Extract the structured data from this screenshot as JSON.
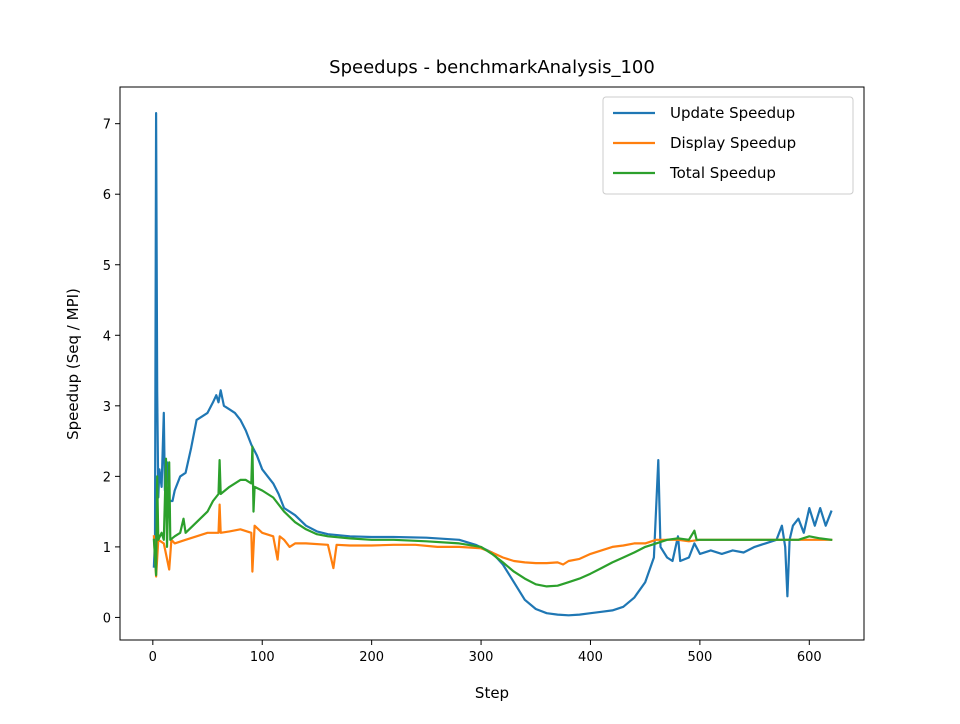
{
  "chart_data": {
    "type": "line",
    "title": "Speedups - benchmarkAnalysis_100",
    "xlabel": "Step",
    "ylabel": "Speedup (Seq / MPI)",
    "xlim": [
      -30,
      650
    ],
    "ylim": [
      -0.32,
      7.52
    ],
    "xticks": [
      0,
      100,
      200,
      300,
      400,
      500,
      600
    ],
    "yticks": [
      0,
      1,
      2,
      3,
      4,
      5,
      6,
      7
    ],
    "grid": false,
    "legend_position": "top-right",
    "series": [
      {
        "name": "Update Speedup",
        "color": "#1f77b4",
        "points": [
          [
            1,
            0.72
          ],
          [
            2,
            1.1
          ],
          [
            3,
            7.15
          ],
          [
            4,
            3.2
          ],
          [
            5,
            1.7
          ],
          [
            6,
            2.1
          ],
          [
            8,
            1.85
          ],
          [
            10,
            2.9
          ],
          [
            11,
            1.8
          ],
          [
            13,
            2.2
          ],
          [
            15,
            1.65
          ],
          [
            18,
            1.65
          ],
          [
            20,
            1.8
          ],
          [
            25,
            2.0
          ],
          [
            30,
            2.05
          ],
          [
            35,
            2.4
          ],
          [
            40,
            2.8
          ],
          [
            45,
            2.85
          ],
          [
            50,
            2.9
          ],
          [
            55,
            3.05
          ],
          [
            58,
            3.15
          ],
          [
            60,
            3.05
          ],
          [
            62,
            3.22
          ],
          [
            65,
            3.0
          ],
          [
            70,
            2.95
          ],
          [
            75,
            2.9
          ],
          [
            80,
            2.8
          ],
          [
            85,
            2.65
          ],
          [
            90,
            2.45
          ],
          [
            95,
            2.3
          ],
          [
            100,
            2.1
          ],
          [
            105,
            2.0
          ],
          [
            110,
            1.9
          ],
          [
            115,
            1.75
          ],
          [
            120,
            1.55
          ],
          [
            125,
            1.5
          ],
          [
            130,
            1.45
          ],
          [
            140,
            1.3
          ],
          [
            150,
            1.22
          ],
          [
            160,
            1.18
          ],
          [
            180,
            1.15
          ],
          [
            200,
            1.14
          ],
          [
            220,
            1.14
          ],
          [
            250,
            1.13
          ],
          [
            280,
            1.1
          ],
          [
            295,
            1.03
          ],
          [
            310,
            0.92
          ],
          [
            320,
            0.75
          ],
          [
            330,
            0.5
          ],
          [
            340,
            0.25
          ],
          [
            350,
            0.12
          ],
          [
            360,
            0.06
          ],
          [
            370,
            0.04
          ],
          [
            380,
            0.03
          ],
          [
            390,
            0.04
          ],
          [
            400,
            0.06
          ],
          [
            410,
            0.08
          ],
          [
            420,
            0.1
          ],
          [
            430,
            0.15
          ],
          [
            440,
            0.28
          ],
          [
            450,
            0.5
          ],
          [
            458,
            0.85
          ],
          [
            462,
            2.23
          ],
          [
            464,
            1.0
          ],
          [
            470,
            0.85
          ],
          [
            475,
            0.8
          ],
          [
            480,
            1.15
          ],
          [
            482,
            0.8
          ],
          [
            490,
            0.85
          ],
          [
            495,
            1.05
          ],
          [
            500,
            0.9
          ],
          [
            510,
            0.95
          ],
          [
            520,
            0.9
          ],
          [
            530,
            0.95
          ],
          [
            540,
            0.92
          ],
          [
            550,
            1.0
          ],
          [
            560,
            1.05
          ],
          [
            570,
            1.1
          ],
          [
            575,
            1.3
          ],
          [
            578,
            1.0
          ],
          [
            580,
            0.3
          ],
          [
            582,
            1.1
          ],
          [
            585,
            1.3
          ],
          [
            590,
            1.4
          ],
          [
            595,
            1.2
          ],
          [
            600,
            1.55
          ],
          [
            605,
            1.3
          ],
          [
            610,
            1.55
          ],
          [
            615,
            1.3
          ],
          [
            620,
            1.5
          ]
        ]
      },
      {
        "name": "Display Speedup",
        "color": "#ff7f0e",
        "points": [
          [
            1,
            1.15
          ],
          [
            3,
            0.58
          ],
          [
            5,
            1.1
          ],
          [
            10,
            1.05
          ],
          [
            15,
            0.68
          ],
          [
            17,
            1.1
          ],
          [
            20,
            1.05
          ],
          [
            30,
            1.1
          ],
          [
            40,
            1.15
          ],
          [
            50,
            1.2
          ],
          [
            60,
            1.2
          ],
          [
            61,
            1.6
          ],
          [
            62,
            1.2
          ],
          [
            70,
            1.22
          ],
          [
            80,
            1.25
          ],
          [
            90,
            1.2
          ],
          [
            91,
            0.65
          ],
          [
            93,
            1.3
          ],
          [
            100,
            1.2
          ],
          [
            110,
            1.15
          ],
          [
            114,
            0.82
          ],
          [
            116,
            1.15
          ],
          [
            120,
            1.1
          ],
          [
            125,
            1.0
          ],
          [
            130,
            1.05
          ],
          [
            140,
            1.05
          ],
          [
            160,
            1.03
          ],
          [
            165,
            0.7
          ],
          [
            168,
            1.03
          ],
          [
            180,
            1.02
          ],
          [
            200,
            1.02
          ],
          [
            220,
            1.03
          ],
          [
            240,
            1.03
          ],
          [
            260,
            1.0
          ],
          [
            280,
            1.0
          ],
          [
            300,
            0.98
          ],
          [
            310,
            0.92
          ],
          [
            320,
            0.85
          ],
          [
            330,
            0.8
          ],
          [
            340,
            0.78
          ],
          [
            350,
            0.77
          ],
          [
            360,
            0.77
          ],
          [
            370,
            0.78
          ],
          [
            375,
            0.75
          ],
          [
            380,
            0.8
          ],
          [
            390,
            0.83
          ],
          [
            400,
            0.9
          ],
          [
            410,
            0.95
          ],
          [
            420,
            1.0
          ],
          [
            430,
            1.02
          ],
          [
            440,
            1.05
          ],
          [
            450,
            1.05
          ],
          [
            460,
            1.1
          ],
          [
            470,
            1.1
          ],
          [
            480,
            1.1
          ],
          [
            490,
            1.08
          ],
          [
            500,
            1.1
          ],
          [
            550,
            1.1
          ],
          [
            600,
            1.1
          ],
          [
            620,
            1.1
          ]
        ]
      },
      {
        "name": "Total Speedup",
        "color": "#2ca02c",
        "points": [
          [
            1,
            1.1
          ],
          [
            3,
            0.6
          ],
          [
            4,
            2.0
          ],
          [
            5,
            1.1
          ],
          [
            8,
            1.2
          ],
          [
            10,
            1.1
          ],
          [
            12,
            2.25
          ],
          [
            13,
            1.0
          ],
          [
            15,
            2.2
          ],
          [
            16,
            1.1
          ],
          [
            20,
            1.15
          ],
          [
            25,
            1.2
          ],
          [
            28,
            1.4
          ],
          [
            30,
            1.2
          ],
          [
            40,
            1.35
          ],
          [
            50,
            1.5
          ],
          [
            55,
            1.65
          ],
          [
            60,
            1.75
          ],
          [
            61,
            2.23
          ],
          [
            62,
            1.75
          ],
          [
            70,
            1.85
          ],
          [
            80,
            1.95
          ],
          [
            85,
            1.95
          ],
          [
            90,
            1.9
          ],
          [
            91,
            2.42
          ],
          [
            92,
            1.5
          ],
          [
            93,
            1.85
          ],
          [
            100,
            1.8
          ],
          [
            110,
            1.7
          ],
          [
            120,
            1.5
          ],
          [
            130,
            1.35
          ],
          [
            140,
            1.25
          ],
          [
            150,
            1.18
          ],
          [
            160,
            1.15
          ],
          [
            180,
            1.12
          ],
          [
            200,
            1.1
          ],
          [
            220,
            1.1
          ],
          [
            250,
            1.08
          ],
          [
            280,
            1.05
          ],
          [
            300,
            1.0
          ],
          [
            310,
            0.9
          ],
          [
            320,
            0.78
          ],
          [
            330,
            0.65
          ],
          [
            340,
            0.55
          ],
          [
            350,
            0.47
          ],
          [
            360,
            0.44
          ],
          [
            370,
            0.45
          ],
          [
            380,
            0.5
          ],
          [
            390,
            0.55
          ],
          [
            400,
            0.62
          ],
          [
            410,
            0.7
          ],
          [
            420,
            0.78
          ],
          [
            430,
            0.85
          ],
          [
            440,
            0.92
          ],
          [
            450,
            1.0
          ],
          [
            460,
            1.05
          ],
          [
            470,
            1.1
          ],
          [
            480,
            1.12
          ],
          [
            490,
            1.1
          ],
          [
            495,
            1.23
          ],
          [
            497,
            1.1
          ],
          [
            510,
            1.1
          ],
          [
            530,
            1.1
          ],
          [
            560,
            1.1
          ],
          [
            580,
            1.1
          ],
          [
            590,
            1.1
          ],
          [
            600,
            1.15
          ],
          [
            610,
            1.12
          ],
          [
            620,
            1.1
          ]
        ]
      }
    ]
  }
}
